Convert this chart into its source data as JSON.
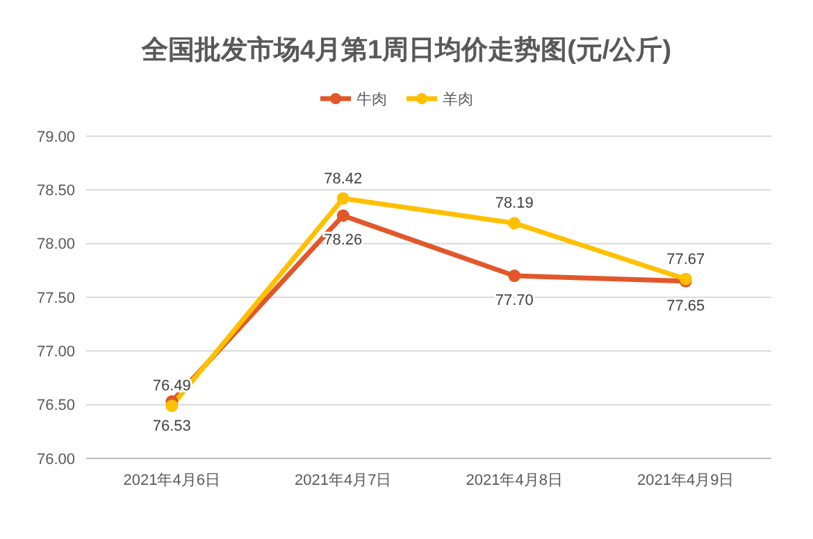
{
  "chart_data": {
    "type": "line",
    "title": "全国批发市场4月第1周日均价走势图(元/公斤)",
    "categories": [
      "2021年4月6日",
      "2021年4月7日",
      "2021年4月8日",
      "2021年4月9日"
    ],
    "series": [
      {
        "name": "牛肉",
        "color": "#e2572a",
        "values": [
          76.53,
          78.26,
          77.7,
          77.65
        ],
        "value_labels": [
          "76.53",
          "78.26",
          "77.70",
          "77.65"
        ]
      },
      {
        "name": "羊肉",
        "color": "#ffc000",
        "values": [
          76.49,
          78.42,
          78.19,
          77.67
        ],
        "value_labels": [
          "76.49",
          "78.42",
          "78.19",
          "77.67"
        ]
      }
    ],
    "ylim": [
      76,
      79
    ],
    "yticks": [
      {
        "value": 76,
        "label": "76.00"
      },
      {
        "value": 76.5,
        "label": "76.50"
      },
      {
        "value": 77,
        "label": "77.00"
      },
      {
        "value": 77.5,
        "label": "77.50"
      },
      {
        "value": 78,
        "label": "78.00"
      },
      {
        "value": 78.5,
        "label": "78.50"
      },
      {
        "value": 79,
        "label": "79.00"
      }
    ],
    "grid": "y",
    "legend": "top",
    "marker": "circle",
    "line_style": "solid"
  }
}
